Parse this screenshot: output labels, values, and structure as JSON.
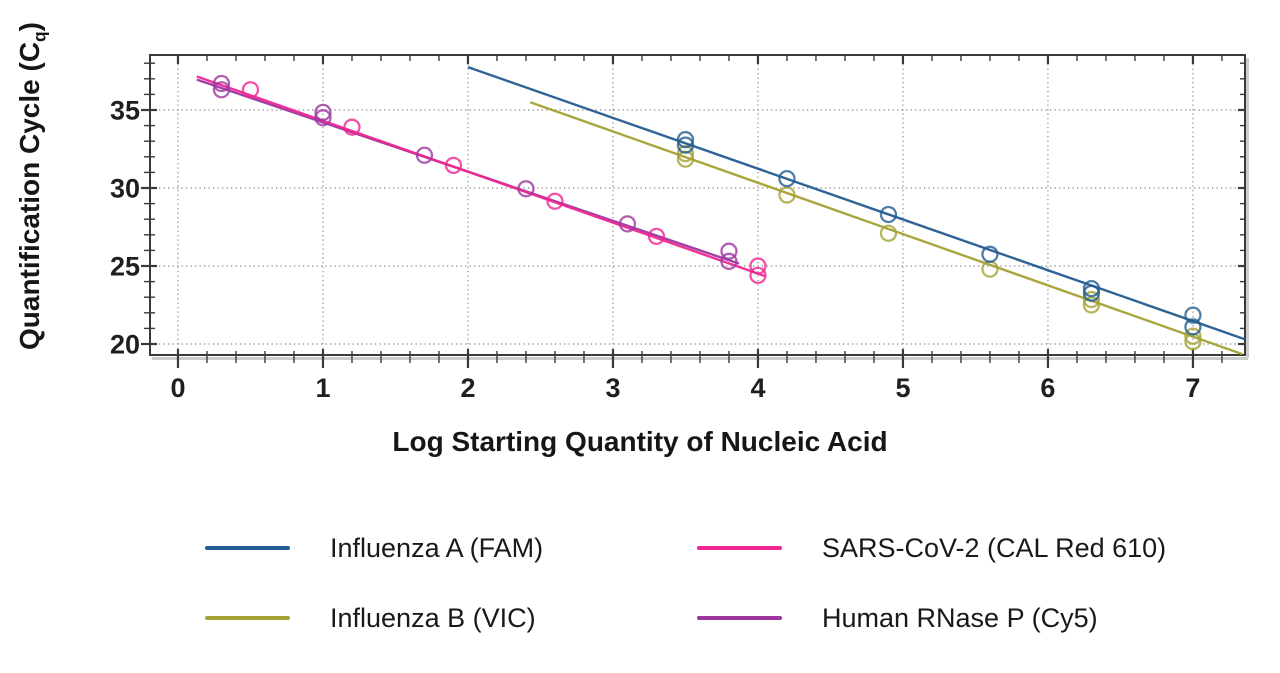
{
  "figure": {
    "x_axis_title": "Log Starting Quantity of Nucleic Acid",
    "y_axis_title_main": "Quantification Cycle (C",
    "y_axis_title_sub": "q",
    "y_axis_title_close": ")"
  },
  "chart_data": {
    "type": "scatter",
    "title": "",
    "xlabel": "Log Starting Quantity of Nucleic Acid",
    "ylabel": "Quantification Cycle (Cq)",
    "xlim": [
      -0.193,
      7.359
    ],
    "ylim": [
      19.295,
      38.526
    ],
    "grid": "dotted",
    "grid_color": "#8e8e8e",
    "axis_color": "#3a3a3a",
    "axis_shadow_color": "#cccccc",
    "tick_label_color": "#1f1f1f",
    "x_major_ticks": [
      0,
      1,
      2,
      3,
      4,
      5,
      6,
      7
    ],
    "x_tick_labels": [
      "0",
      "1",
      "2",
      "3",
      "4",
      "5",
      "6",
      "7"
    ],
    "x_minor_step": 0.2,
    "y_major_ticks": [
      20,
      25,
      30,
      35
    ],
    "y_tick_labels": [
      "20",
      "25",
      "30",
      "35"
    ],
    "y_minor_step": 1,
    "legend_position": "below",
    "series": [
      {
        "name": "Influenza A (FAM)",
        "color": "#235c90",
        "marker": "open-circle",
        "points": [
          [
            3.5,
            33.1
          ],
          [
            3.5,
            32.75
          ],
          [
            4.2,
            30.6
          ],
          [
            4.9,
            28.3
          ],
          [
            5.6,
            25.75
          ],
          [
            6.3,
            23.55
          ],
          [
            6.3,
            23.25
          ],
          [
            7.0,
            21.85
          ],
          [
            7.0,
            21.1
          ]
        ],
        "trendline": {
          "x1": 2.0,
          "cq1": 37.75,
          "x2": 7.36,
          "cq2": 20.3
        }
      },
      {
        "name": "Influenza B (VIC)",
        "color": "#a4a233",
        "marker": "open-circle",
        "points": [
          [
            3.5,
            32.2
          ],
          [
            3.5,
            31.85
          ],
          [
            4.2,
            29.55
          ],
          [
            4.9,
            27.1
          ],
          [
            5.6,
            24.8
          ],
          [
            6.3,
            22.85
          ],
          [
            6.3,
            22.5
          ],
          [
            7.0,
            20.5
          ],
          [
            7.0,
            20.15
          ]
        ],
        "trendline": {
          "x1": 2.43,
          "cq1": 35.5,
          "x2": 7.34,
          "cq2": 19.35
        }
      },
      {
        "name": "SARS-CoV-2 (CAL Red 610)",
        "color": "#f02692",
        "marker": "open-circle",
        "points": [
          [
            0.5,
            36.3
          ],
          [
            1.2,
            33.9
          ],
          [
            1.9,
            31.45
          ],
          [
            2.6,
            29.15
          ],
          [
            3.3,
            26.9
          ],
          [
            4.0,
            25.0
          ],
          [
            4.0,
            24.4
          ]
        ],
        "trendline": {
          "x1": 0.13,
          "cq1": 37.15,
          "x2": 4.05,
          "cq2": 24.35
        }
      },
      {
        "name": "Human RNase P (Cy5)",
        "color": "#9c37a0",
        "marker": "open-circle",
        "points": [
          [
            0.3,
            36.7
          ],
          [
            0.3,
            36.3
          ],
          [
            1.0,
            34.85
          ],
          [
            1.0,
            34.5
          ],
          [
            1.7,
            32.1
          ],
          [
            2.4,
            29.95
          ],
          [
            3.1,
            27.7
          ],
          [
            3.8,
            25.95
          ],
          [
            3.8,
            25.3
          ]
        ],
        "trendline": {
          "x1": 0.13,
          "cq1": 36.95,
          "x2": 3.87,
          "cq2": 25.15
        }
      }
    ]
  }
}
